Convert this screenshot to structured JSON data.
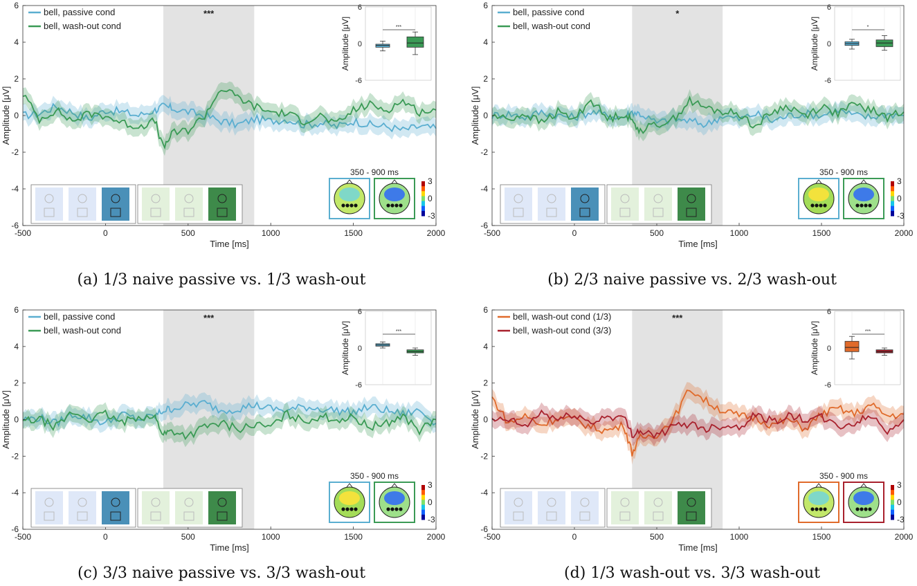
{
  "common": {
    "xlabel": "Time [ms]",
    "ylabel": "Amplitude [μV]",
    "inset_ylabel": "Amplitude [μV]",
    "xlim": [
      -500,
      2000
    ],
    "ylim": [
      -6,
      6
    ],
    "xticks": [
      -500,
      0,
      500,
      1000,
      1500,
      2000
    ],
    "yticks": [
      -6,
      -4,
      -2,
      0,
      2,
      4,
      6
    ],
    "inset_yticks": [
      -6,
      0,
      6
    ],
    "shade_window": [
      350,
      900
    ],
    "topo_title": "350 - 900 ms",
    "colorbar_ticks": [
      "3",
      "0",
      "-3"
    ],
    "colors": {
      "passive": "#5aaed0",
      "washout": "#3a9a55",
      "washout13": "#e06a2a",
      "washout33": "#a8202c",
      "shade": "#e3e3e3"
    }
  },
  "chart_data": [
    {
      "type": "line",
      "panel": "a",
      "caption": "(a) 1/3 naive passive vs. 1/3 wash-out",
      "significance": "***",
      "inset_significance": "***",
      "series": [
        {
          "name": "bell, passive cond",
          "color_key": "passive",
          "x": [
            -500,
            -400,
            -300,
            -200,
            -100,
            0,
            100,
            200,
            300,
            350,
            400,
            500,
            600,
            700,
            800,
            900,
            1000,
            1100,
            1200,
            1300,
            1400,
            1500,
            1600,
            1700,
            1800,
            1900,
            2000
          ],
          "values": [
            0.0,
            0.1,
            0.5,
            0.2,
            -0.2,
            0.3,
            0.2,
            0.0,
            0.3,
            0.5,
            0.4,
            0.2,
            0.0,
            -0.3,
            -0.5,
            -0.2,
            -0.3,
            -0.2,
            -0.5,
            -0.4,
            -0.6,
            -0.3,
            -0.5,
            -0.6,
            -0.8,
            -0.6,
            -0.7
          ]
        },
        {
          "name": "bell, wash-out cond",
          "color_key": "washout",
          "x": [
            -500,
            -400,
            -300,
            -200,
            -100,
            0,
            100,
            200,
            300,
            350,
            400,
            500,
            600,
            700,
            800,
            900,
            1000,
            1100,
            1200,
            1300,
            1400,
            1500,
            1600,
            1700,
            1800,
            1900,
            2000
          ],
          "values": [
            1.2,
            -0.2,
            0.3,
            -0.3,
            0.1,
            0.0,
            -0.4,
            -0.6,
            -0.3,
            -1.8,
            -1.0,
            -0.8,
            0.0,
            1.5,
            1.0,
            0.5,
            0.2,
            0.1,
            -0.3,
            0.0,
            -0.5,
            0.3,
            0.6,
            0.3,
            0.8,
            0.2,
            0.3
          ]
        }
      ],
      "inset": {
        "type": "box",
        "boxes": [
          {
            "color_key": "passive",
            "min": -1.2,
            "q1": -0.6,
            "median": -0.3,
            "q3": -0.1,
            "max": 0.4
          },
          {
            "color_key": "washout",
            "min": -1.8,
            "q1": -0.6,
            "median": 0.1,
            "q3": 1.1,
            "max": 1.9
          }
        ]
      },
      "epoch_panels": [
        {
          "opacities": [
            0.2,
            0.2,
            1.0
          ],
          "tint": "blue"
        },
        {
          "opacities": [
            0.2,
            0.2,
            1.0
          ],
          "tint": "green"
        }
      ],
      "topo_frames": [
        "passive",
        "washout"
      ],
      "topo_patterns": [
        "neutral",
        "blue"
      ]
    },
    {
      "type": "line",
      "panel": "b",
      "caption": "(b) 2/3 naive passive vs. 2/3 wash-out",
      "significance": "*",
      "inset_significance": "*",
      "series": [
        {
          "name": "bell, passive cond",
          "color_key": "passive",
          "x": [
            -500,
            -400,
            -300,
            -200,
            -100,
            0,
            100,
            200,
            300,
            350,
            400,
            500,
            600,
            700,
            800,
            900,
            1000,
            1100,
            1200,
            1300,
            1400,
            1500,
            1600,
            1700,
            1800,
            1900,
            2000
          ],
          "values": [
            0.0,
            0.1,
            -0.1,
            0.2,
            0.0,
            -0.1,
            0.2,
            0.0,
            -0.1,
            0.2,
            0.1,
            -0.4,
            -0.2,
            -0.3,
            -0.5,
            0.0,
            -0.2,
            0.1,
            -0.3,
            0.0,
            0.1,
            0.0,
            0.3,
            0.0,
            -0.1,
            0.1,
            0.0
          ]
        },
        {
          "name": "bell, wash-out cond",
          "color_key": "washout",
          "x": [
            -500,
            -400,
            -300,
            -200,
            -100,
            0,
            100,
            200,
            300,
            350,
            400,
            500,
            600,
            700,
            800,
            900,
            1000,
            1100,
            1200,
            1300,
            1400,
            1500,
            1600,
            1700,
            1800,
            1900,
            2000
          ],
          "values": [
            0.0,
            -0.2,
            0.1,
            -0.4,
            0.2,
            -0.2,
            0.9,
            -0.2,
            0.1,
            -0.3,
            -0.8,
            -0.5,
            -0.2,
            0.8,
            0.4,
            0.2,
            0.1,
            -0.6,
            0.2,
            0.5,
            0.0,
            0.5,
            0.1,
            0.6,
            0.3,
            -0.1,
            0.2
          ]
        }
      ],
      "inset": {
        "type": "box",
        "boxes": [
          {
            "color_key": "passive",
            "min": -0.9,
            "q1": -0.3,
            "median": 0.0,
            "q3": 0.3,
            "max": 0.7
          },
          {
            "color_key": "washout",
            "min": -1.1,
            "q1": -0.5,
            "median": 0.1,
            "q3": 0.6,
            "max": 1.3
          }
        ]
      },
      "epoch_panels": [
        {
          "opacities": [
            0.2,
            0.2,
            1.0
          ],
          "tint": "blue"
        },
        {
          "opacities": [
            0.2,
            0.2,
            1.0
          ],
          "tint": "green"
        }
      ],
      "topo_frames": [
        "passive",
        "washout"
      ],
      "topo_patterns": [
        "warm",
        "blue"
      ]
    },
    {
      "type": "line",
      "panel": "c",
      "caption": "(c) 3/3 naive passive vs. 3/3 wash-out",
      "significance": "***",
      "inset_significance": "***",
      "series": [
        {
          "name": "bell, passive cond",
          "color_key": "passive",
          "x": [
            -500,
            -400,
            -300,
            -200,
            -100,
            0,
            100,
            200,
            300,
            350,
            400,
            500,
            600,
            700,
            800,
            900,
            1000,
            1100,
            1200,
            1300,
            1400,
            1500,
            1600,
            1700,
            1800,
            1900,
            2000
          ],
          "values": [
            0.0,
            0.1,
            -0.2,
            0.3,
            0.1,
            -0.2,
            0.3,
            0.0,
            0.2,
            0.5,
            0.6,
            0.8,
            0.9,
            0.5,
            0.6,
            0.8,
            0.6,
            0.5,
            0.7,
            0.6,
            0.5,
            0.4,
            0.7,
            0.5,
            0.3,
            0.5,
            -0.2
          ]
        },
        {
          "name": "bell, wash-out cond",
          "color_key": "washout",
          "x": [
            -500,
            -400,
            -300,
            -200,
            -100,
            0,
            100,
            200,
            300,
            350,
            400,
            500,
            600,
            700,
            800,
            900,
            1000,
            1100,
            1200,
            1300,
            1400,
            1500,
            1600,
            1700,
            1800,
            1900,
            2000
          ],
          "values": [
            -0.1,
            0.0,
            -0.4,
            0.4,
            0.0,
            0.3,
            -0.2,
            0.2,
            0.1,
            -0.8,
            -0.6,
            -0.9,
            -0.4,
            -0.2,
            -0.5,
            -0.3,
            -0.4,
            0.3,
            -0.1,
            0.2,
            0.0,
            0.1,
            -0.4,
            -0.2,
            0.2,
            -0.6,
            0.0
          ]
        }
      ],
      "inset": {
        "type": "box",
        "boxes": [
          {
            "color_key": "passive",
            "min": 0.0,
            "q1": 0.3,
            "median": 0.5,
            "q3": 0.7,
            "max": 1.0
          },
          {
            "color_key": "washout",
            "min": -1.2,
            "q1": -0.8,
            "median": -0.6,
            "q3": -0.3,
            "max": 0.0
          }
        ]
      },
      "epoch_panels": [
        {
          "opacities": [
            0.2,
            0.2,
            1.0
          ],
          "tint": "blue"
        },
        {
          "opacities": [
            0.2,
            0.2,
            1.0
          ],
          "tint": "green"
        }
      ],
      "topo_frames": [
        "passive",
        "washout"
      ],
      "topo_patterns": [
        "warm",
        "blue"
      ]
    },
    {
      "type": "line",
      "panel": "d",
      "caption": "(d) 1/3 wash-out vs. 3/3 wash-out",
      "significance": "***",
      "inset_significance": "***",
      "series": [
        {
          "name": "bell, wash-out cond (1/3)",
          "color_key": "washout13",
          "x": [
            -500,
            -400,
            -300,
            -200,
            -100,
            0,
            100,
            200,
            300,
            350,
            400,
            500,
            600,
            700,
            800,
            900,
            1000,
            1100,
            1200,
            1300,
            1400,
            1500,
            1600,
            1700,
            1800,
            1900,
            2000
          ],
          "values": [
            1.2,
            -0.2,
            0.2,
            -0.3,
            0.1,
            0.0,
            -0.4,
            -0.6,
            -0.3,
            -1.8,
            -1.0,
            -0.8,
            0.0,
            1.7,
            1.0,
            0.5,
            0.2,
            0.1,
            -0.3,
            0.0,
            -0.5,
            0.3,
            0.6,
            0.3,
            0.8,
            0.2,
            0.3
          ]
        },
        {
          "name": "bell, wash-out cond (3/3)",
          "color_key": "washout33",
          "x": [
            -500,
            -400,
            -300,
            -200,
            -100,
            0,
            100,
            200,
            300,
            350,
            400,
            500,
            600,
            700,
            800,
            900,
            1000,
            1100,
            1200,
            1300,
            1400,
            1500,
            1600,
            1700,
            1800,
            1900,
            2000
          ],
          "values": [
            -0.1,
            0.0,
            -0.4,
            0.4,
            0.0,
            0.3,
            -0.2,
            0.2,
            0.1,
            -0.8,
            -0.6,
            -0.9,
            -0.4,
            -0.2,
            -0.5,
            -0.3,
            -0.4,
            0.3,
            -0.1,
            0.2,
            0.0,
            0.1,
            -0.4,
            -0.2,
            0.2,
            -0.6,
            0.0
          ]
        }
      ],
      "inset": {
        "type": "box",
        "boxes": [
          {
            "color_key": "washout13",
            "min": -1.8,
            "q1": -0.6,
            "median": 0.1,
            "q3": 1.1,
            "max": 1.9
          },
          {
            "color_key": "washout33",
            "min": -1.2,
            "q1": -0.8,
            "median": -0.6,
            "q3": -0.3,
            "max": 0.0
          }
        ]
      },
      "epoch_panels": [
        {
          "opacities": [
            0.2,
            0.2,
            0.2
          ],
          "tint": "blue"
        },
        {
          "opacities": [
            0.2,
            0.2,
            1.0
          ],
          "tint": "green"
        }
      ],
      "topo_frames": [
        "washout13",
        "washout33"
      ],
      "topo_patterns": [
        "neutral",
        "blue"
      ]
    }
  ]
}
